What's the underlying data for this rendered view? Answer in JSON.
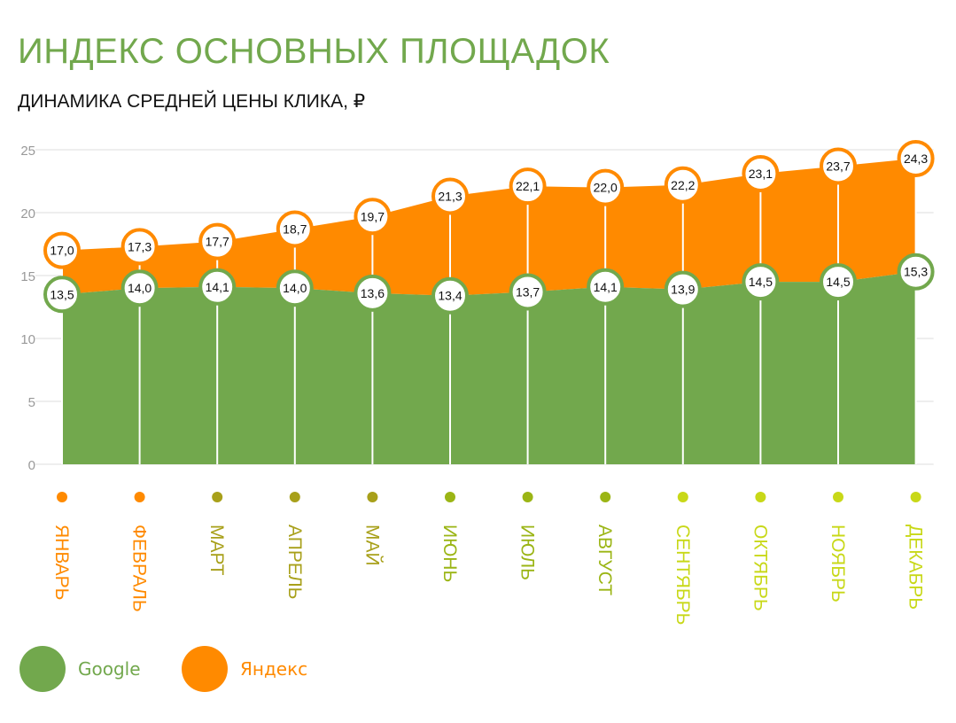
{
  "title": "ИНДЕКС ОСНОВНЫХ ПЛОЩАДОК",
  "subtitle": "ДИНАМИКА СРЕДНЕЙ ЦЕНЫ КЛИКА, ₽",
  "colors": {
    "google": "#72a84d",
    "yandex": "#ff8a00",
    "axis_text": "#999999",
    "grid": "#dcdcdc",
    "marker_fill": "#ffffff"
  },
  "chart_data": {
    "type": "area",
    "categories": [
      "ЯНВАРЬ",
      "ФЕВРАЛЬ",
      "МАРТ",
      "АПРЕЛЬ",
      "МАЙ",
      "ИЮНЬ",
      "ИЮЛЬ",
      "АВГУСТ",
      "СЕНТЯБРЬ",
      "ОКТЯБРЬ",
      "НОЯБРЬ",
      "ДЕКАБРЬ"
    ],
    "category_colors": [
      "#ff8a00",
      "#ff8a00",
      "#a8a01a",
      "#a8a01a",
      "#a8a01a",
      "#9bb515",
      "#9bb515",
      "#9bb515",
      "#c8d818",
      "#c8d818",
      "#c8d818",
      "#c8d818"
    ],
    "series": [
      {
        "name": "Google",
        "color": "#72a84d",
        "values": [
          13.5,
          14.0,
          14.1,
          14.0,
          13.6,
          13.4,
          13.7,
          14.1,
          13.9,
          14.5,
          14.5,
          15.3
        ],
        "labels": [
          "13,5",
          "14,0",
          "14,1",
          "14,0",
          "13,6",
          "13,4",
          "13,7",
          "14,1",
          "13,9",
          "14,5",
          "14,5",
          "15,3"
        ]
      },
      {
        "name": "Яндекс",
        "color": "#ff8a00",
        "values": [
          17.0,
          17.3,
          17.7,
          18.7,
          19.7,
          21.3,
          22.1,
          22.0,
          22.2,
          23.1,
          23.7,
          24.3
        ],
        "labels": [
          "17,0",
          "17,3",
          "17,7",
          "18,7",
          "19,7",
          "21,3",
          "22,1",
          "22,0",
          "22,2",
          "23,1",
          "23,7",
          "24,3"
        ]
      }
    ],
    "y_ticks": [
      "0",
      "5",
      "10",
      "15",
      "20",
      "25"
    ],
    "ylim": [
      0,
      25
    ],
    "grid": true,
    "legend_position": "bottom-left"
  }
}
